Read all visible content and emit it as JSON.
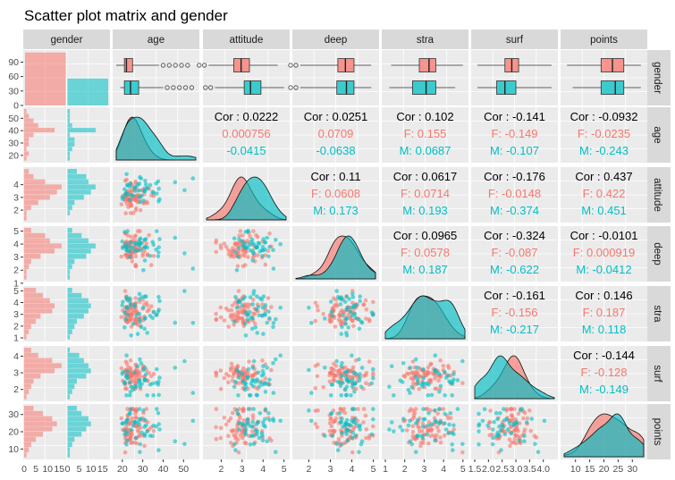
{
  "title": "Scatter plot matrix and gender",
  "colors": {
    "female": "#F8766D",
    "male": "#00BFC4",
    "panel_bg": "#EBEBEB",
    "strip_bg": "#D9D9D9",
    "grid": "#FFFFFF"
  },
  "variables": [
    "gender",
    "age",
    "attitude",
    "deep",
    "stra",
    "surf",
    "points"
  ],
  "axis_ticks": {
    "age_x": [
      "20",
      "30",
      "40",
      "50"
    ],
    "attitude_x": [
      "2",
      "3",
      "4",
      "5"
    ],
    "deep_x": [
      "2",
      "3",
      "4",
      "5"
    ],
    "stra_x": [
      "1",
      "2",
      "3",
      "4",
      "5"
    ],
    "surf_x": [
      "1.5",
      "2.0",
      "2.5",
      "3.0",
      "3.5",
      "4.0"
    ],
    "points_x": [
      "10",
      "15",
      "20",
      "25",
      "30"
    ],
    "gender_hist_x": [
      "0",
      "5",
      "10",
      "15",
      "0",
      "5",
      "10",
      "15"
    ],
    "gender_y": [
      "90",
      "60",
      "30",
      "0"
    ],
    "age_y": [
      "50",
      "40",
      "30",
      "20"
    ],
    "attitude_y": [
      "4",
      "3",
      "2"
    ],
    "deep_y": [
      "5",
      "4",
      "3",
      "2",
      "1"
    ],
    "stra_y": [
      "5",
      "4",
      "3",
      "2",
      "1"
    ],
    "surf_y": [
      "4",
      "3",
      "2"
    ],
    "points_y": [
      "30",
      "20",
      "10"
    ]
  },
  "correlations": [
    {
      "row": "age",
      "col": "attitude",
      "cor": "Cor : 0.0222",
      "f": "0.000756",
      "m": "-0.0415"
    },
    {
      "row": "age",
      "col": "deep",
      "cor": "Cor : 0.0251",
      "f": "0.0709",
      "m": "-0.0638"
    },
    {
      "row": "age",
      "col": "stra",
      "cor": "Cor : 0.102",
      "f": "F: 0.155",
      "m": "M: 0.0687"
    },
    {
      "row": "age",
      "col": "surf",
      "cor": "Cor : -0.141",
      "f": "F: -0.149",
      "m": "M: -0.107"
    },
    {
      "row": "age",
      "col": "points",
      "cor": "Cor : -0.0932",
      "f": "F: -0.0235",
      "m": "M: -0.243"
    },
    {
      "row": "attitude",
      "col": "deep",
      "cor": "Cor : 0.11",
      "f": "F: 0.0608",
      "m": "M: 0.173"
    },
    {
      "row": "attitude",
      "col": "stra",
      "cor": "Cor : 0.0617",
      "f": "F: 0.0714",
      "m": "M: 0.193"
    },
    {
      "row": "attitude",
      "col": "surf",
      "cor": "Cor : -0.176",
      "f": "F: -0.0148",
      "m": "M: -0.374"
    },
    {
      "row": "attitude",
      "col": "points",
      "cor": "Cor : 0.437",
      "f": "F: 0.422",
      "m": "M: 0.451"
    },
    {
      "row": "deep",
      "col": "stra",
      "cor": "Cor : 0.0965",
      "f": "F: 0.0578",
      "m": "M: 0.187"
    },
    {
      "row": "deep",
      "col": "surf",
      "cor": "Cor : -0.324",
      "f": "F: -0.087",
      "m": "M: -0.622"
    },
    {
      "row": "deep",
      "col": "points",
      "cor": "Cor : -0.0101",
      "f": "F: 0.000919",
      "m": "M: -0.0412"
    },
    {
      "row": "stra",
      "col": "surf",
      "cor": "Cor : -0.161",
      "f": "F: -0.156",
      "m": "M: -0.217"
    },
    {
      "row": "stra",
      "col": "points",
      "cor": "Cor : 0.146",
      "f": "F: 0.187",
      "m": "M: 0.118"
    },
    {
      "row": "surf",
      "col": "points",
      "cor": "Cor : -0.144",
      "f": "F: -0.128",
      "m": "M: -0.149"
    }
  ],
  "chart_data": {
    "type": "scatter",
    "title": "Scatter plot matrix and gender",
    "groups": [
      "F",
      "M"
    ],
    "gender_counts": {
      "F": 110,
      "M": 56
    },
    "ranges": {
      "age": [
        17,
        56
      ],
      "attitude": [
        1.3,
        5.1
      ],
      "deep": [
        1.4,
        5.1
      ],
      "stra": [
        1.0,
        5.1
      ],
      "surf": [
        1.5,
        4.4
      ],
      "points": [
        6,
        34
      ]
    },
    "boxplots": {
      "age": {
        "F": [
          17,
          21,
          22,
          25,
          38
        ],
        "M": [
          19,
          21,
          24,
          28,
          40
        ]
      },
      "attitude": {
        "F": [
          1.4,
          2.6,
          2.95,
          3.35,
          4.7
        ],
        "M": [
          1.7,
          3.1,
          3.4,
          3.9,
          5.0
        ]
      },
      "deep": {
        "F": [
          1.6,
          3.35,
          3.7,
          4.1,
          4.9
        ],
        "M": [
          1.6,
          3.3,
          3.75,
          4.1,
          4.9
        ]
      },
      "stra": {
        "F": [
          1.3,
          2.75,
          3.25,
          3.6,
          5.0
        ],
        "M": [
          1.2,
          2.4,
          3.1,
          3.6,
          4.6
        ]
      },
      "surf": {
        "F": [
          1.6,
          2.6,
          2.85,
          3.1,
          4.3
        ],
        "M": [
          1.6,
          2.3,
          2.6,
          3.0,
          4.3
        ]
      },
      "points": {
        "F": [
          7,
          19,
          23,
          27,
          33
        ],
        "M": [
          9,
          19,
          24,
          27,
          33
        ]
      }
    },
    "row_hist_counts": {
      "age": {
        "F": [
          1,
          2,
          1,
          2,
          2,
          4,
          13,
          6,
          4,
          2,
          1
        ],
        "M": [
          1,
          1,
          2,
          3,
          3,
          1,
          12,
          2,
          1,
          1,
          1
        ]
      },
      "attitude": {
        "F": [
          1,
          1,
          3,
          6,
          11,
          14,
          16,
          9,
          4,
          2
        ],
        "M": [
          0,
          1,
          2,
          3,
          7,
          10,
          12,
          9,
          8,
          4
        ]
      },
      "deep": {
        "F": [
          1,
          1,
          2,
          3,
          7,
          13,
          16,
          11,
          9,
          3
        ],
        "M": [
          1,
          1,
          2,
          3,
          8,
          10,
          12,
          9,
          6,
          2
        ]
      },
      "stra": {
        "F": [
          1,
          2,
          3,
          5,
          7,
          12,
          13,
          11,
          8,
          5
        ],
        "M": [
          1,
          2,
          3,
          4,
          7,
          9,
          10,
          9,
          6,
          2
        ]
      },
      "surf": {
        "F": [
          1,
          2,
          3,
          4,
          7,
          13,
          16,
          12,
          6,
          3
        ],
        "M": [
          1,
          2,
          3,
          4,
          8,
          10,
          9,
          7,
          5,
          1
        ]
      },
      "points": {
        "F": [
          1,
          2,
          3,
          5,
          8,
          12,
          14,
          12,
          8,
          4
        ],
        "M": [
          1,
          1,
          2,
          3,
          6,
          8,
          10,
          9,
          6,
          4
        ]
      }
    }
  }
}
